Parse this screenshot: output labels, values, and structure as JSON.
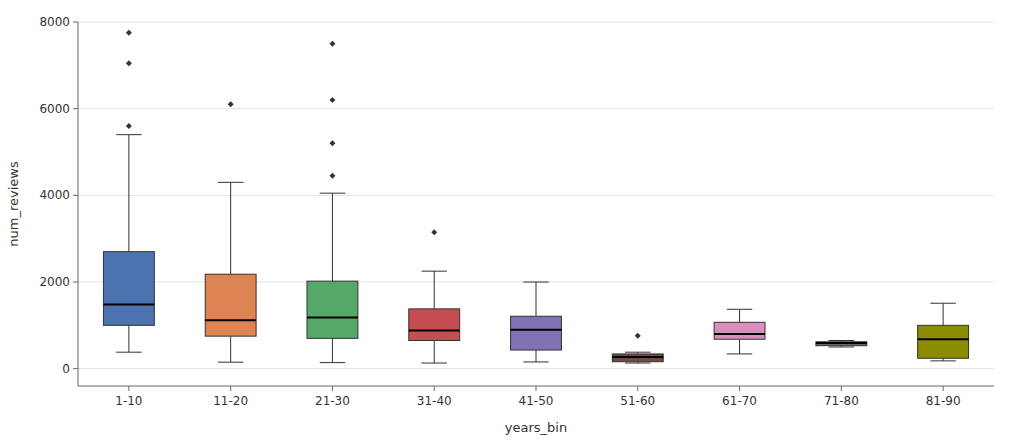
{
  "chart_data": {
    "type": "box",
    "xlabel": "years_bin",
    "ylabel": "num_reviews",
    "categories": [
      "1-10",
      "11-20",
      "21-30",
      "31-40",
      "41-50",
      "51-60",
      "61-70",
      "71-80",
      "81-90"
    ],
    "colors": [
      "#4C72B0",
      "#DD8452",
      "#55A868",
      "#C44E52",
      "#8172B3",
      "#6D4C41",
      "#DA8EC0",
      "#666666",
      "#8C8C00"
    ],
    "boxes": [
      {
        "q1": 1000,
        "median": 1480,
        "q3": 2700,
        "whislo": 380,
        "whishi": 5400,
        "fliers": [
          5600,
          7050,
          7750
        ]
      },
      {
        "q1": 750,
        "median": 1120,
        "q3": 2180,
        "whislo": 150,
        "whishi": 4300,
        "fliers": [
          6100
        ]
      },
      {
        "q1": 700,
        "median": 1180,
        "q3": 2020,
        "whislo": 140,
        "whishi": 4050,
        "fliers": [
          4450,
          5200,
          6200,
          7500
        ]
      },
      {
        "q1": 650,
        "median": 880,
        "q3": 1380,
        "whislo": 130,
        "whishi": 2250,
        "fliers": [
          3150
        ]
      },
      {
        "q1": 430,
        "median": 900,
        "q3": 1210,
        "whislo": 155,
        "whishi": 2000,
        "fliers": []
      },
      {
        "q1": 160,
        "median": 270,
        "q3": 340,
        "whislo": 130,
        "whishi": 380,
        "fliers": [
          760
        ]
      },
      {
        "q1": 680,
        "median": 800,
        "q3": 1070,
        "whislo": 340,
        "whishi": 1370,
        "fliers": []
      },
      {
        "q1": 530,
        "median": 590,
        "q3": 620,
        "whislo": 500,
        "whishi": 650,
        "fliers": []
      },
      {
        "q1": 240,
        "median": 680,
        "q3": 1000,
        "whislo": 180,
        "whishi": 1510,
        "fliers": []
      }
    ],
    "ylim": [
      -400,
      8000
    ],
    "yticks": [
      0,
      2000,
      4000,
      6000,
      8000
    ],
    "grid": true
  }
}
